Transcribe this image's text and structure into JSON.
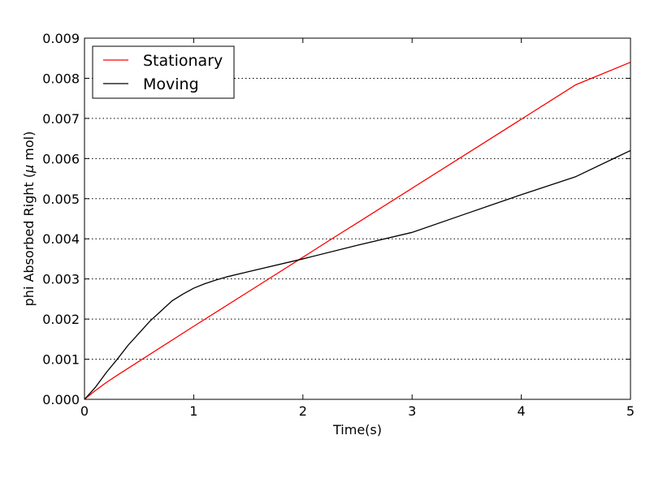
{
  "chart_data": {
    "type": "line",
    "xlabel": "Time(s)",
    "ylabel_prefix": "phi Absorbed Right (",
    "ylabel_mu": "μ",
    "ylabel_suffix": " mol)",
    "xlim": [
      0,
      5
    ],
    "ylim": [
      0,
      0.009
    ],
    "x_ticks": [
      0,
      1,
      2,
      3,
      4,
      5
    ],
    "x_tick_labels": [
      "0",
      "1",
      "2",
      "3",
      "4",
      "5"
    ],
    "y_ticks": [
      0,
      0.001,
      0.002,
      0.003,
      0.004,
      0.005,
      0.006,
      0.007,
      0.008,
      0.009
    ],
    "y_tick_labels": [
      "0.000",
      "0.001",
      "0.002",
      "0.003",
      "0.004",
      "0.005",
      "0.006",
      "0.007",
      "0.008",
      "0.009"
    ],
    "grid": "horizontal-dotted",
    "legend_position": "top-left",
    "series": [
      {
        "name": "Stationary",
        "color": "#ff0000",
        "points": [
          [
            0,
            0
          ],
          [
            0.1,
            0.00022
          ],
          [
            0.2,
            0.00042
          ],
          [
            0.3,
            0.0006
          ],
          [
            0.5,
            0.00095
          ],
          [
            1.0,
            0.00182
          ],
          [
            1.5,
            0.00268
          ],
          [
            2.0,
            0.00354
          ],
          [
            2.3,
            0.00406
          ],
          [
            2.5,
            0.0044
          ],
          [
            3.0,
            0.00526
          ],
          [
            3.5,
            0.00612
          ],
          [
            4.0,
            0.00698
          ],
          [
            4.5,
            0.00784
          ],
          [
            5.0,
            0.0084
          ]
        ]
      },
      {
        "name": "Moving",
        "color": "#000000",
        "points": [
          [
            0,
            0
          ],
          [
            0.1,
            0.0003
          ],
          [
            0.2,
            0.00067
          ],
          [
            0.3,
            0.001
          ],
          [
            0.4,
            0.00135
          ],
          [
            0.5,
            0.00165
          ],
          [
            0.6,
            0.00195
          ],
          [
            0.7,
            0.0022
          ],
          [
            0.8,
            0.00245
          ],
          [
            0.9,
            0.00262
          ],
          [
            1.0,
            0.00277
          ],
          [
            1.1,
            0.00288
          ],
          [
            1.2,
            0.00297
          ],
          [
            1.3,
            0.00305
          ],
          [
            1.5,
            0.00318
          ],
          [
            2.0,
            0.0035
          ],
          [
            2.5,
            0.00384
          ],
          [
            3.0,
            0.00416
          ],
          [
            3.5,
            0.00463
          ],
          [
            4.0,
            0.0051
          ],
          [
            4.5,
            0.00555
          ],
          [
            5.0,
            0.0062
          ]
        ]
      }
    ]
  }
}
